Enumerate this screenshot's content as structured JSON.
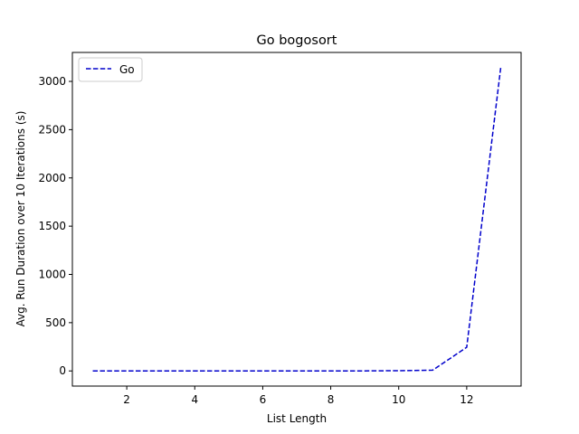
{
  "chart_data": {
    "type": "line",
    "title": "Go bogosort",
    "xlabel": "List Length",
    "ylabel": "Avg. Run Duration over 10 Iterations (s)",
    "xlim": [
      0.4,
      13.6
    ],
    "ylim": [
      -157,
      3300
    ],
    "xticks": [
      2,
      4,
      6,
      8,
      10,
      12
    ],
    "yticks": [
      0,
      500,
      1000,
      1500,
      2000,
      2500,
      3000
    ],
    "grid": false,
    "legend_position": "top-left",
    "series": [
      {
        "name": "Go",
        "color": "#0000cc",
        "line_style": "dashed",
        "x": [
          1,
          2,
          3,
          4,
          5,
          6,
          7,
          8,
          9,
          10,
          11,
          12,
          13
        ],
        "y": [
          0,
          0,
          0,
          0,
          0,
          0,
          0,
          0,
          0.3,
          2.5,
          8,
          245,
          3140
        ]
      }
    ]
  }
}
